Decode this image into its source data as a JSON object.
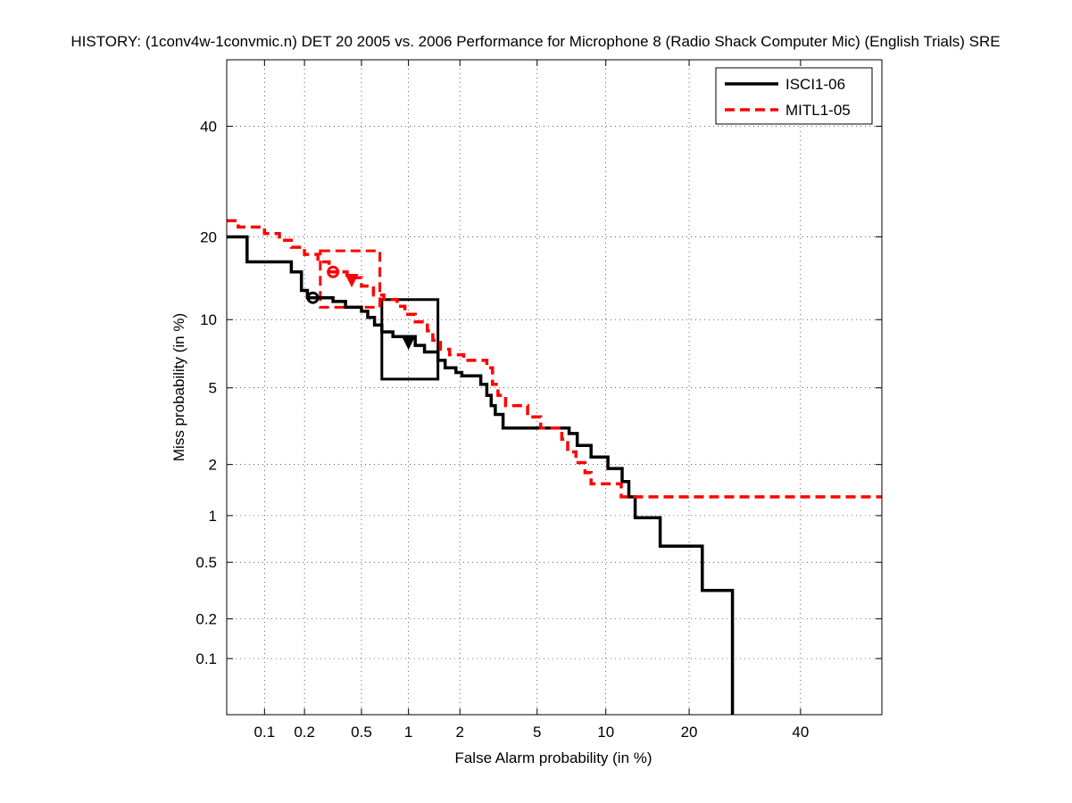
{
  "chart_data": {
    "type": "line",
    "title": "HISTORY: (1conv4w-1convmic.n) DET 20 2005 vs. 2006 Performance for Microphone 8 (Radio Shack Computer Mic) (English Trials) SRE",
    "xlabel": "False Alarm probability (in %)",
    "ylabel": "Miss probability (in %)",
    "scale": "normal-deviate (probit)",
    "xlim": [
      0.05,
      57
    ],
    "ylim": [
      0.035,
      54
    ],
    "grid": true,
    "legend_position": "top-right",
    "xticks": [
      {
        "value": 0.1,
        "label": "0.1"
      },
      {
        "value": 0.2,
        "label": "0.2"
      },
      {
        "value": 0.5,
        "label": "0.5"
      },
      {
        "value": 1,
        "label": "1"
      },
      {
        "value": 2,
        "label": "2"
      },
      {
        "value": 5,
        "label": "5"
      },
      {
        "value": 10,
        "label": "10"
      },
      {
        "value": 20,
        "label": "20"
      },
      {
        "value": 40,
        "label": "40"
      }
    ],
    "yticks": [
      {
        "value": 0.1,
        "label": "0.1"
      },
      {
        "value": 0.2,
        "label": "0.2"
      },
      {
        "value": 0.5,
        "label": "0.5"
      },
      {
        "value": 1,
        "label": "1"
      },
      {
        "value": 2,
        "label": "2"
      },
      {
        "value": 5,
        "label": "5"
      },
      {
        "value": 10,
        "label": "10"
      },
      {
        "value": 20,
        "label": "20"
      },
      {
        "value": 40,
        "label": "40"
      }
    ],
    "series": [
      {
        "name": "ISCI1-06",
        "color": "#000000",
        "dash": "solid",
        "points": [
          [
            0.05,
            20
          ],
          [
            0.073,
            20
          ],
          [
            0.073,
            16.5
          ],
          [
            0.16,
            16.5
          ],
          [
            0.16,
            15.2
          ],
          [
            0.19,
            15.2
          ],
          [
            0.19,
            13
          ],
          [
            0.21,
            13
          ],
          [
            0.21,
            12.2
          ],
          [
            0.32,
            12.2
          ],
          [
            0.32,
            11.8
          ],
          [
            0.39,
            11.8
          ],
          [
            0.39,
            11.2
          ],
          [
            0.5,
            11.2
          ],
          [
            0.5,
            10.8
          ],
          [
            0.55,
            10.8
          ],
          [
            0.55,
            10.2
          ],
          [
            0.61,
            10.2
          ],
          [
            0.61,
            9.5
          ],
          [
            0.68,
            9.5
          ],
          [
            0.68,
            8.9
          ],
          [
            0.8,
            8.9
          ],
          [
            0.8,
            8.5
          ],
          [
            1.1,
            8.5
          ],
          [
            1.1,
            7.8
          ],
          [
            1.25,
            7.8
          ],
          [
            1.25,
            7.3
          ],
          [
            1.5,
            7.3
          ],
          [
            1.5,
            6.7
          ],
          [
            1.65,
            6.7
          ],
          [
            1.65,
            6.2
          ],
          [
            1.9,
            6.2
          ],
          [
            1.9,
            5.9
          ],
          [
            2.05,
            5.9
          ],
          [
            2.05,
            5.7
          ],
          [
            2.6,
            5.7
          ],
          [
            2.6,
            5.2
          ],
          [
            2.8,
            5.2
          ],
          [
            2.8,
            4.6
          ],
          [
            2.95,
            4.6
          ],
          [
            2.95,
            4.1
          ],
          [
            3.1,
            4.1
          ],
          [
            3.1,
            3.7
          ],
          [
            3.4,
            3.7
          ],
          [
            3.4,
            3.15
          ],
          [
            7,
            3.15
          ],
          [
            7,
            2.95
          ],
          [
            7.6,
            2.95
          ],
          [
            7.6,
            2.55
          ],
          [
            8.7,
            2.55
          ],
          [
            8.7,
            2.2
          ],
          [
            10.2,
            2.2
          ],
          [
            10.2,
            1.9
          ],
          [
            11.6,
            1.9
          ],
          [
            11.6,
            1.6
          ],
          [
            12.3,
            1.6
          ],
          [
            12.3,
            1.3
          ],
          [
            13,
            1.3
          ],
          [
            13,
            0.97
          ],
          [
            16,
            0.97
          ],
          [
            16,
            0.64
          ],
          [
            22,
            0.64
          ],
          [
            22,
            0.32
          ],
          [
            27,
            0.32
          ],
          [
            27,
            0.035
          ]
        ],
        "actual_dcf_point": [
          0.23,
          12.2
        ],
        "min_dcf_point": [
          1.0,
          8.1
        ],
        "confidence_box": {
          "x": [
            0.68,
            1.5
          ],
          "y": [
            5.5,
            12
          ]
        }
      },
      {
        "name": "MITL1-05",
        "color": "#ff0000",
        "dash": "dashed",
        "points": [
          [
            0.05,
            22.5
          ],
          [
            0.062,
            22.5
          ],
          [
            0.062,
            21.5
          ],
          [
            0.1,
            21.5
          ],
          [
            0.1,
            20.5
          ],
          [
            0.13,
            20.5
          ],
          [
            0.13,
            19.5
          ],
          [
            0.16,
            19.5
          ],
          [
            0.16,
            18.5
          ],
          [
            0.2,
            18.5
          ],
          [
            0.2,
            17.5
          ],
          [
            0.25,
            17.5
          ],
          [
            0.25,
            16.5
          ],
          [
            0.3,
            16.5
          ],
          [
            0.3,
            15.2
          ],
          [
            0.4,
            15.2
          ],
          [
            0.4,
            14.5
          ],
          [
            0.5,
            14.5
          ],
          [
            0.5,
            13.5
          ],
          [
            0.6,
            13.5
          ],
          [
            0.6,
            12.5
          ],
          [
            0.7,
            12.5
          ],
          [
            0.7,
            12
          ],
          [
            0.85,
            12
          ],
          [
            0.85,
            11.3
          ],
          [
            0.95,
            11.3
          ],
          [
            0.95,
            10.5
          ],
          [
            1.1,
            10.5
          ],
          [
            1.1,
            9.8
          ],
          [
            1.3,
            9.8
          ],
          [
            1.3,
            9
          ],
          [
            1.4,
            9
          ],
          [
            1.4,
            8.2
          ],
          [
            1.55,
            8.2
          ],
          [
            1.55,
            7.5
          ],
          [
            1.75,
            7.5
          ],
          [
            1.75,
            7.1
          ],
          [
            2.1,
            7.1
          ],
          [
            2.1,
            6.7
          ],
          [
            2.8,
            6.7
          ],
          [
            2.8,
            6.2
          ],
          [
            3.0,
            6.2
          ],
          [
            3.0,
            5.2
          ],
          [
            3.2,
            5.2
          ],
          [
            3.2,
            4.6
          ],
          [
            3.5,
            4.6
          ],
          [
            3.5,
            4.1
          ],
          [
            4.5,
            4.1
          ],
          [
            4.5,
            3.6
          ],
          [
            5.2,
            3.6
          ],
          [
            5.2,
            3.15
          ],
          [
            6.5,
            3.15
          ],
          [
            6.5,
            2.75
          ],
          [
            6.9,
            2.75
          ],
          [
            6.9,
            2.35
          ],
          [
            7.5,
            2.35
          ],
          [
            7.5,
            2.05
          ],
          [
            8.2,
            2.05
          ],
          [
            8.2,
            1.8
          ],
          [
            8.7,
            1.8
          ],
          [
            8.7,
            1.55
          ],
          [
            11.5,
            1.55
          ],
          [
            11.5,
            1.3
          ],
          [
            57,
            1.3
          ]
        ],
        "actual_dcf_point": [
          0.32,
          15.2
        ],
        "min_dcf_point": [
          0.43,
          14.3
        ],
        "confidence_box": {
          "x": [
            0.26,
            0.66
          ],
          "y": [
            11.2,
            18
          ]
        }
      }
    ]
  }
}
